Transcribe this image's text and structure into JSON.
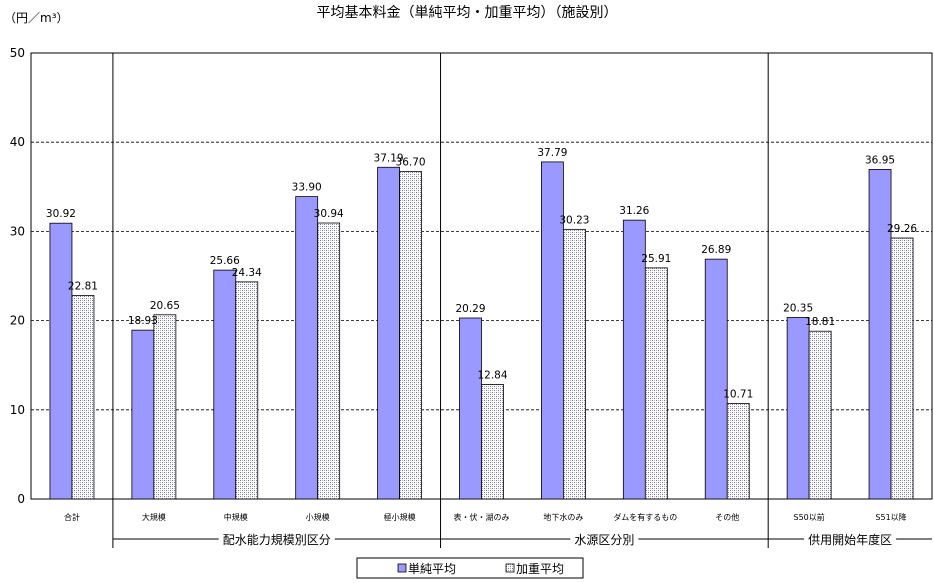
{
  "chart_data": {
    "type": "bar",
    "title": "平均基本料金（単純平均・加重平均）（施設別）",
    "ylabel": "（円／m³）",
    "ylim": [
      0,
      50
    ],
    "yticks": [
      0,
      10,
      20,
      30,
      40,
      50
    ],
    "grid": true,
    "legend_position": "bottom",
    "categories": [
      "合計",
      "大規模",
      "中規模",
      "小規模",
      "極小規模",
      "表・伏・湖のみ",
      "地下水のみ",
      "ダムを有するもの",
      "その他",
      "S50以前",
      "S51以降"
    ],
    "value_labels": {
      "simple": [
        "30.92",
        "18.93",
        "25.66",
        "33.90",
        "37.19",
        "20.29",
        "37.79",
        "31.26",
        "26.89",
        "20.35",
        "36.95"
      ],
      "weighted": [
        "22.81",
        "20.65",
        "24.34",
        "30.94",
        "36.70",
        "12.84",
        "30.23",
        "25.91",
        "10.71",
        "18.81",
        "29.26"
      ]
    },
    "series": [
      {
        "name": "単純平均",
        "color": "#9999ff",
        "values": [
          30.92,
          18.93,
          25.66,
          33.9,
          37.19,
          20.29,
          37.79,
          31.26,
          26.89,
          20.35,
          36.95
        ]
      },
      {
        "name": "加重平均",
        "color": "#c0c0d8",
        "values": [
          22.81,
          20.65,
          24.34,
          30.94,
          36.7,
          12.84,
          30.23,
          25.91,
          10.71,
          18.81,
          29.26
        ]
      }
    ],
    "groups": [
      {
        "label": "配水能力規模別区分",
        "categories": [
          "大規模",
          "中規模",
          "小規模",
          "極小規模"
        ]
      },
      {
        "label": "水源区分別",
        "categories": [
          "表・伏・湖のみ",
          "地下水のみ",
          "ダムを有するもの",
          "その他"
        ]
      },
      {
        "label": "供用開始年度区",
        "categories": [
          "S50以前",
          "S51以降"
        ]
      }
    ]
  }
}
